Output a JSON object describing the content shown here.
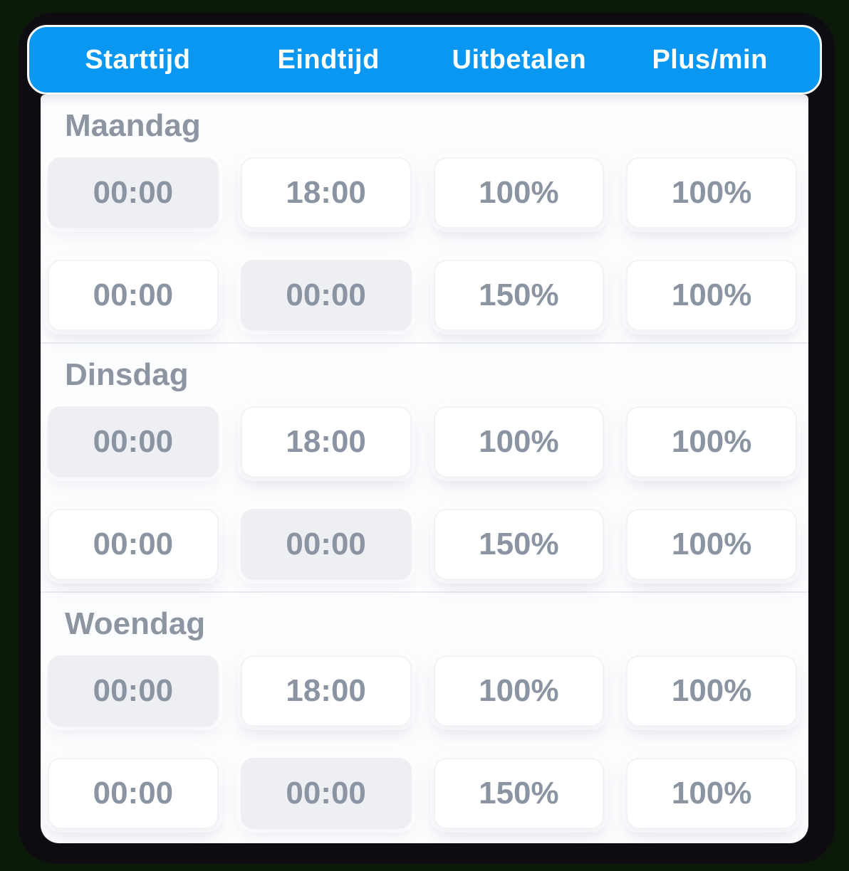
{
  "theme": {
    "background": "#0b1a08",
    "frame": "#0e0c11",
    "accent_blue": "#0997f2",
    "text_gray": "#8b94a2",
    "disabled_field_bg": "#edeff2"
  },
  "header": {
    "columns": [
      "Starttijd",
      "Eindtijd",
      "Uitbetalen",
      "Plus/min"
    ]
  },
  "days": [
    {
      "label": "Maandag",
      "rows": [
        {
          "cells": [
            {
              "value": "00:00",
              "disabled": true
            },
            {
              "value": "18:00",
              "disabled": false
            },
            {
              "value": "100%",
              "disabled": false
            },
            {
              "value": "100%",
              "disabled": false
            }
          ]
        },
        {
          "cells": [
            {
              "value": "00:00",
              "disabled": false
            },
            {
              "value": "00:00",
              "disabled": true
            },
            {
              "value": "150%",
              "disabled": false
            },
            {
              "value": "100%",
              "disabled": false
            }
          ]
        }
      ]
    },
    {
      "label": "Dinsdag",
      "rows": [
        {
          "cells": [
            {
              "value": "00:00",
              "disabled": true
            },
            {
              "value": "18:00",
              "disabled": false
            },
            {
              "value": "100%",
              "disabled": false
            },
            {
              "value": "100%",
              "disabled": false
            }
          ]
        },
        {
          "cells": [
            {
              "value": "00:00",
              "disabled": false
            },
            {
              "value": "00:00",
              "disabled": true
            },
            {
              "value": "150%",
              "disabled": false
            },
            {
              "value": "100%",
              "disabled": false
            }
          ]
        }
      ]
    },
    {
      "label": "Woendag",
      "rows": [
        {
          "cells": [
            {
              "value": "00:00",
              "disabled": true
            },
            {
              "value": "18:00",
              "disabled": false
            },
            {
              "value": "100%",
              "disabled": false
            },
            {
              "value": "100%",
              "disabled": false
            }
          ]
        },
        {
          "cells": [
            {
              "value": "00:00",
              "disabled": false
            },
            {
              "value": "00:00",
              "disabled": true
            },
            {
              "value": "150%",
              "disabled": false
            },
            {
              "value": "100%",
              "disabled": false
            }
          ]
        }
      ]
    }
  ]
}
